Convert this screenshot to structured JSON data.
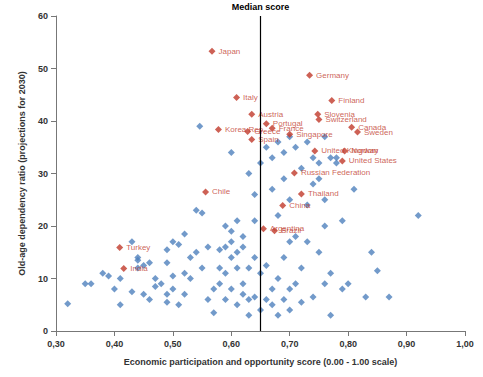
{
  "chart_data": {
    "type": "scatter",
    "x_label": "Economic participation and opportunity score (0.00 - 1.00 scale)",
    "y_label": "Old-age dependency ratio (projections for 2030)",
    "xlim": [
      0.3,
      1.0
    ],
    "xticks": [
      {
        "value": 0.3,
        "label": "0,30"
      },
      {
        "value": 0.4,
        "label": "0,40"
      },
      {
        "value": 0.5,
        "label": "0,50"
      },
      {
        "value": 0.6,
        "label": "0,60"
      },
      {
        "value": 0.7,
        "label": "0,70"
      },
      {
        "value": 0.8,
        "label": "0,80"
      },
      {
        "value": 0.9,
        "label": "0,90"
      },
      {
        "value": 1.0,
        "label": "1,00"
      }
    ],
    "ylim": [
      0,
      60
    ],
    "yticks": [
      0,
      10,
      20,
      30,
      40,
      50,
      60
    ],
    "grid": false,
    "annotations": [
      {
        "type": "vline",
        "x": 0.645,
        "text": "Median score"
      }
    ],
    "series": [
      {
        "color": "#4f81bd",
        "marker": "diamond",
        "x": [
          0.32,
          0.35,
          0.36,
          0.38,
          0.39,
          0.4,
          0.41,
          0.41,
          0.43,
          0.43,
          0.44,
          0.44,
          0.44,
          0.45,
          0.45,
          0.46,
          0.46,
          0.47,
          0.47,
          0.48,
          0.49,
          0.49,
          0.49,
          0.49,
          0.5,
          0.5,
          0.5,
          0.51,
          0.51,
          0.52,
          0.52,
          0.52,
          0.53,
          0.53,
          0.54,
          0.54,
          0.55,
          0.55,
          0.56,
          0.56,
          0.57,
          0.57,
          0.58,
          0.58,
          0.58,
          0.546,
          0.59,
          0.59,
          0.59,
          0.59,
          0.6,
          0.6,
          0.6,
          0.6,
          0.6,
          0.61,
          0.61,
          0.61,
          0.61,
          0.62,
          0.62,
          0.62,
          0.62,
          0.63,
          0.63,
          0.63,
          0.63,
          0.64,
          0.64,
          0.64,
          0.64,
          0.65,
          0.65,
          0.65,
          0.66,
          0.66,
          0.66,
          0.67,
          0.67,
          0.67,
          0.67,
          0.68,
          0.68,
          0.68,
          0.68,
          0.69,
          0.69,
          0.69,
          0.69,
          0.7,
          0.7,
          0.7,
          0.7,
          0.7,
          0.71,
          0.71,
          0.71,
          0.72,
          0.72,
          0.72,
          0.73,
          0.73,
          0.73,
          0.74,
          0.74,
          0.74,
          0.75,
          0.75,
          0.75,
          0.76,
          0.76,
          0.76,
          0.76,
          0.77,
          0.77,
          0.77,
          0.78,
          0.78,
          0.79,
          0.79,
          0.8,
          0.81,
          0.83,
          0.84,
          0.85,
          0.87,
          0.92
        ],
        "values": [
          5.2,
          9,
          9,
          11,
          10.5,
          8,
          10,
          5,
          7.5,
          17,
          14,
          12,
          13.5,
          12.5,
          7,
          13,
          6,
          8.5,
          10,
          9,
          5.5,
          7,
          13,
          15.5,
          8,
          10.5,
          17,
          16.5,
          5,
          7,
          11,
          18.5,
          14,
          10,
          15,
          23,
          22.5,
          12,
          16,
          6,
          3.5,
          8,
          12,
          15.5,
          9,
          39,
          16,
          20,
          6,
          11,
          17,
          14,
          8,
          34,
          19,
          15,
          5,
          12,
          21,
          16,
          18,
          7,
          9,
          6,
          3,
          12,
          30,
          21,
          26,
          6.5,
          14,
          11,
          4,
          32,
          35,
          6,
          12.5,
          27,
          33,
          8,
          5,
          36,
          22,
          10,
          3,
          29,
          34,
          6,
          14,
          17,
          25,
          37,
          8,
          4,
          18,
          9,
          35,
          31,
          12,
          5.5,
          24,
          17,
          36,
          33,
          28,
          6.5,
          29,
          32,
          15,
          20,
          37,
          25,
          9,
          33,
          11,
          3,
          33,
          32,
          21,
          8,
          9,
          27,
          6.5,
          15,
          11.5,
          6.5,
          22
        ]
      },
      {
        "color": "#c0392b",
        "marker": "diamond",
        "labels": [
          "Japan",
          "Germany",
          "Finland",
          "Italy",
          "Austria",
          "Slovenia",
          "Portugal",
          "Switzerland",
          "France",
          "Canada",
          "Sweden",
          "Singapore",
          "Korea Rep.",
          "Greece",
          "Spain",
          "United Kingdom",
          "Norway",
          "United States",
          "Russian Federation",
          "Thailand",
          "China",
          "Chile",
          "Argentina",
          "Brazil",
          "Turkey",
          "India"
        ],
        "x": [
          0.567,
          0.734,
          0.772,
          0.609,
          0.635,
          0.748,
          0.66,
          0.75,
          0.67,
          0.806,
          0.816,
          0.7,
          0.578,
          0.628,
          0.635,
          0.743,
          0.794,
          0.79,
          0.708,
          0.72,
          0.688,
          0.556,
          0.655,
          0.674,
          0.409,
          0.416
        ],
        "values": [
          53.3,
          48.7,
          43.9,
          44.5,
          41.3,
          41.3,
          39.5,
          40.3,
          38.6,
          38.8,
          37.9,
          37.5,
          38.4,
          38,
          36.5,
          34.3,
          34.3,
          32.4,
          30.1,
          26.1,
          23.9,
          26.5,
          19.5,
          19.1,
          15.9,
          11.9
        ]
      }
    ]
  }
}
